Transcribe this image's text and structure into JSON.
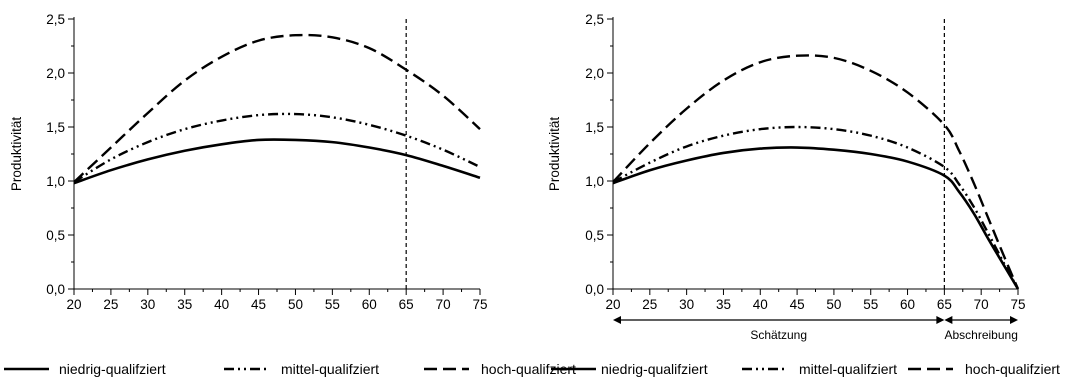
{
  "chart_data": [
    {
      "type": "line",
      "title": "",
      "xlabel": "",
      "ylabel": "Produktivität",
      "xlim": [
        20,
        75
      ],
      "ylim": [
        0,
        2.5
      ],
      "xticks": [
        20,
        25,
        30,
        35,
        40,
        45,
        50,
        55,
        60,
        65,
        70,
        75
      ],
      "xtick_labels": [
        "20",
        "25",
        "30",
        "35",
        "40",
        "45",
        "50",
        "55",
        "60",
        "65",
        "70",
        "75"
      ],
      "yticks": [
        0,
        0.5,
        1,
        1.5,
        2,
        2.5
      ],
      "ytick_labels": [
        "0,0",
        "0,5",
        "1,0",
        "1,5",
        "2,0",
        "2,5"
      ],
      "vline_x": 65,
      "x": [
        20,
        25,
        30,
        35,
        40,
        45,
        50,
        55,
        60,
        65,
        70,
        75
      ],
      "series": [
        {
          "name": "niedrig-qualifziert",
          "style": "solid",
          "values": [
            0.98,
            1.1,
            1.2,
            1.28,
            1.34,
            1.38,
            1.38,
            1.36,
            1.31,
            1.24,
            1.14,
            1.03
          ]
        },
        {
          "name": "mittel-qualifziert",
          "style": "dashdotdot",
          "values": [
            0.99,
            1.2,
            1.36,
            1.48,
            1.56,
            1.61,
            1.62,
            1.59,
            1.52,
            1.42,
            1.29,
            1.13
          ]
        },
        {
          "name": "hoch-qualifziert",
          "style": "dashed",
          "values": [
            0.99,
            1.31,
            1.63,
            1.93,
            2.15,
            2.3,
            2.35,
            2.33,
            2.23,
            2.03,
            1.79,
            1.48
          ]
        }
      ]
    },
    {
      "type": "line",
      "title": "",
      "xlabel": "",
      "ylabel": "Produktivität",
      "xlim": [
        20,
        75
      ],
      "ylim": [
        0,
        2.5
      ],
      "xticks": [
        20,
        25,
        30,
        35,
        40,
        45,
        50,
        55,
        60,
        65,
        70,
        75
      ],
      "xtick_labels": [
        "20",
        "25",
        "30",
        "35",
        "40",
        "45",
        "50",
        "55",
        "60",
        "65",
        "70",
        "75"
      ],
      "yticks": [
        0,
        0.5,
        1,
        1.5,
        2,
        2.5
      ],
      "ytick_labels": [
        "0,0",
        "0,5",
        "1,0",
        "1,5",
        "2,0",
        "2,5"
      ],
      "vline_x": 65,
      "x": [
        20,
        25,
        30,
        35,
        40,
        45,
        50,
        55,
        60,
        65,
        67,
        69,
        71,
        73,
        75
      ],
      "series": [
        {
          "name": "niedrig-qualifziert",
          "style": "solid",
          "values": [
            0.98,
            1.1,
            1.19,
            1.26,
            1.3,
            1.31,
            1.29,
            1.25,
            1.18,
            1.05,
            0.9,
            0.7,
            0.46,
            0.23,
            0.0
          ]
        },
        {
          "name": "mittel-qualifziert",
          "style": "dashdotdot",
          "values": [
            0.99,
            1.17,
            1.32,
            1.42,
            1.48,
            1.5,
            1.48,
            1.42,
            1.31,
            1.13,
            0.97,
            0.76,
            0.51,
            0.25,
            0.0
          ]
        },
        {
          "name": "hoch-qualifziert",
          "style": "dashed",
          "values": [
            0.99,
            1.35,
            1.67,
            1.93,
            2.1,
            2.16,
            2.14,
            2.02,
            1.82,
            1.52,
            1.28,
            0.98,
            0.65,
            0.32,
            0.0
          ]
        }
      ],
      "spans": [
        {
          "label": "Schätzung",
          "from": 20,
          "to": 65
        },
        {
          "label": "Abschreibung",
          "from": 65,
          "to": 75
        }
      ]
    }
  ],
  "legend": {
    "items": [
      {
        "label": "niedrig-qualifziert",
        "style": "solid"
      },
      {
        "label": "mittel-qualifziert",
        "style": "dashdotdot"
      },
      {
        "label": "hoch-qualifziert",
        "style": "dashed"
      },
      {
        "label": "niedrig-qualifziert",
        "style": "solid"
      },
      {
        "label": "mittel-qualifziert",
        "style": "dashdotdot"
      },
      {
        "label": "hoch-qualifziert",
        "style": "dashed"
      }
    ]
  }
}
